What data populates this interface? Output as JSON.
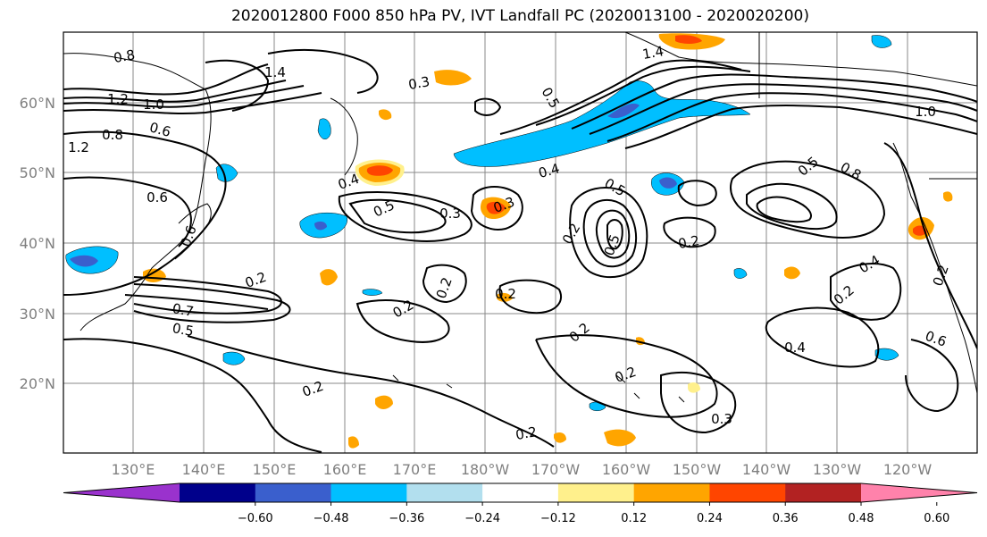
{
  "title": "2020012800 F000 850 hPa PV, IVT Landfall PC (2020013100 - 2020020200)",
  "map": {
    "lat_ticks": [
      "60°N",
      "50°N",
      "40°N",
      "30°N",
      "20°N"
    ],
    "lon_ticks": [
      "130°E",
      "140°E",
      "150°E",
      "160°E",
      "170°E",
      "180°W",
      "170°W",
      "160°W",
      "150°W",
      "140°W",
      "130°W",
      "120°W"
    ],
    "contour_labels": [
      {
        "text": "0.8"
      },
      {
        "text": "1.4"
      },
      {
        "text": "1.4"
      },
      {
        "text": "1.2"
      },
      {
        "text": "1.0"
      },
      {
        "text": "0.8"
      },
      {
        "text": "0.6"
      },
      {
        "text": "1.2"
      },
      {
        "text": "0.6"
      },
      {
        "text": "0.6"
      },
      {
        "text": "0.3"
      },
      {
        "text": "0.5"
      },
      {
        "text": "0.4"
      },
      {
        "text": "0.5"
      },
      {
        "text": "0.4"
      },
      {
        "text": "0.3"
      },
      {
        "text": "0.5"
      },
      {
        "text": "0.3"
      },
      {
        "text": "0.2"
      },
      {
        "text": "0.5"
      },
      {
        "text": "0.2"
      },
      {
        "text": "0.7"
      },
      {
        "text": "0.5"
      },
      {
        "text": "0.2"
      },
      {
        "text": "0.2"
      },
      {
        "text": "0.2"
      },
      {
        "text": "0.2"
      },
      {
        "text": "0.2"
      },
      {
        "text": "0.2"
      },
      {
        "text": "0.4"
      },
      {
        "text": "0.2"
      },
      {
        "text": "0.4"
      },
      {
        "text": "0.6"
      },
      {
        "text": "0.3"
      },
      {
        "text": "0.2"
      },
      {
        "text": "0.2"
      },
      {
        "text": "0.5"
      },
      {
        "text": "0.8"
      },
      {
        "text": "0.2"
      },
      {
        "text": "1.0"
      }
    ],
    "colors": {
      "neg_060": "#9a32cd",
      "neg_048": "#00008b",
      "neg_036": "#3a5fcd",
      "neg_024": "#00bfff",
      "neg_012": "#b2dfee",
      "neutral": "#ffffff",
      "pos_012": "#fff08c",
      "pos_024": "#ffa500",
      "pos_036": "#ff4500",
      "pos_048": "#b22222",
      "pos_060": "#ff82ab",
      "contour": "#000000",
      "grid": "#888888"
    }
  },
  "colorbar": {
    "ticks": [
      "−0.60",
      "−0.48",
      "−0.36",
      "−0.24",
      "−0.12",
      "0.12",
      "0.24",
      "0.36",
      "0.48",
      "0.60"
    ]
  }
}
